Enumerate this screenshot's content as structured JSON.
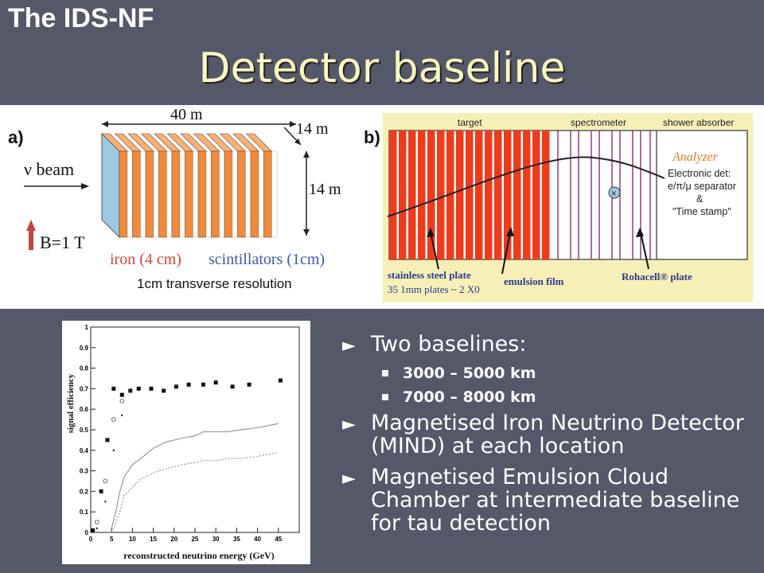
{
  "header": {
    "corner_title": "The IDS-NF",
    "title": "Detector baseline"
  },
  "figure_a": {
    "label": "a)",
    "length": "40 m",
    "depth": "14 m",
    "height": "14 m",
    "beam": "ν beam",
    "field": "B=1 T",
    "iron": "iron (4 cm)",
    "scint": "scintillators (1cm)",
    "resolution": "1cm transverse resolution",
    "colors": {
      "iron": "#f08a3c",
      "scint": "#ffffff",
      "side": "#9dc9e2"
    }
  },
  "figure_b": {
    "label": "b)",
    "target": "target",
    "spectrometer": "spectrometer",
    "absorber": "shower absorber",
    "analyzer": "Analyzer",
    "electronic_lines": [
      "Electronic det:",
      "e/π/μ separator",
      "&",
      "\"Time stamp\""
    ],
    "steel": "stainless steel plate",
    "emulsion": "emulsion film",
    "rohacell": "Rohacell® plate",
    "plates": "35  1mm plates ~ 2 X0",
    "colors": {
      "bg": "#f6f0b8",
      "target": "#ee3b1c",
      "spec_line": "#8a2f7a"
    }
  },
  "bullets": [
    {
      "text": "Two baselines:",
      "sub": [
        "3000 – 5000 km",
        "7000 – 8000 km"
      ]
    },
    {
      "text": "Magnetised Iron Neutrino Detector (MIND) at each location",
      "sub": []
    },
    {
      "text": "Magnetised Emulsion Cloud Chamber at intermediate baseline for tau detection",
      "sub": []
    }
  ],
  "chart_data": {
    "type": "scatter",
    "xlabel": "reconstructed neutrino energy (GeV)",
    "ylabel": "signal efficiency",
    "xlim": [
      0,
      50
    ],
    "ylim": [
      0,
      1
    ],
    "xticks": [
      0,
      5,
      10,
      15,
      20,
      25,
      30,
      35,
      40,
      45
    ],
    "yticks": [
      0,
      0.1,
      0.2,
      0.3,
      0.4,
      0.5,
      0.6,
      0.7,
      0.8,
      0.9,
      1
    ],
    "series": [
      {
        "marker": "filled-square",
        "x": [
          0.5,
          2.5,
          4,
          5.5,
          7.5,
          9.5,
          11.5,
          14.5,
          17.5,
          20.5,
          23.5,
          27,
          30,
          34,
          38,
          45.5
        ],
        "y": [
          0.01,
          0.2,
          0.45,
          0.7,
          0.67,
          0.69,
          0.7,
          0.7,
          0.69,
          0.71,
          0.72,
          0.72,
          0.73,
          0.71,
          0.72,
          0.74
        ]
      },
      {
        "marker": "open-circle",
        "x": [
          1.5,
          3.5,
          5.5,
          7.5
        ],
        "y": [
          0.05,
          0.25,
          0.55,
          0.64
        ]
      },
      {
        "marker": "dot",
        "x": [
          1.5,
          3.5,
          5.5,
          7.5
        ],
        "y": [
          0.02,
          0.15,
          0.4,
          0.57
        ]
      },
      {
        "marker": "solid-line",
        "x": [
          5,
          6,
          7,
          8,
          10,
          12,
          15,
          18,
          20,
          22,
          25,
          27,
          30,
          33,
          36,
          40,
          45
        ],
        "y": [
          0.02,
          0.1,
          0.2,
          0.27,
          0.33,
          0.36,
          0.41,
          0.44,
          0.45,
          0.46,
          0.47,
          0.49,
          0.49,
          0.49,
          0.5,
          0.51,
          0.53
        ]
      },
      {
        "marker": "dotted-line",
        "x": [
          5,
          6,
          7,
          8,
          10,
          12,
          15,
          18,
          20,
          22,
          25,
          27,
          30,
          33,
          36,
          40,
          45
        ],
        "y": [
          0.0,
          0.05,
          0.1,
          0.18,
          0.22,
          0.26,
          0.29,
          0.31,
          0.32,
          0.33,
          0.34,
          0.35,
          0.35,
          0.36,
          0.36,
          0.37,
          0.39
        ]
      }
    ]
  }
}
